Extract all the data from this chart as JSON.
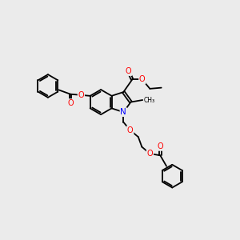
{
  "bg_color": "#ebebeb",
  "bond_color": "#000000",
  "bond_width": 1.3,
  "O_color": "#ff0000",
  "N_color": "#0000ff",
  "font_size": 7.0,
  "fig_size": [
    3.0,
    3.0
  ],
  "dpi": 100,
  "xlim": [
    0,
    10
  ],
  "ylim": [
    0,
    10
  ]
}
